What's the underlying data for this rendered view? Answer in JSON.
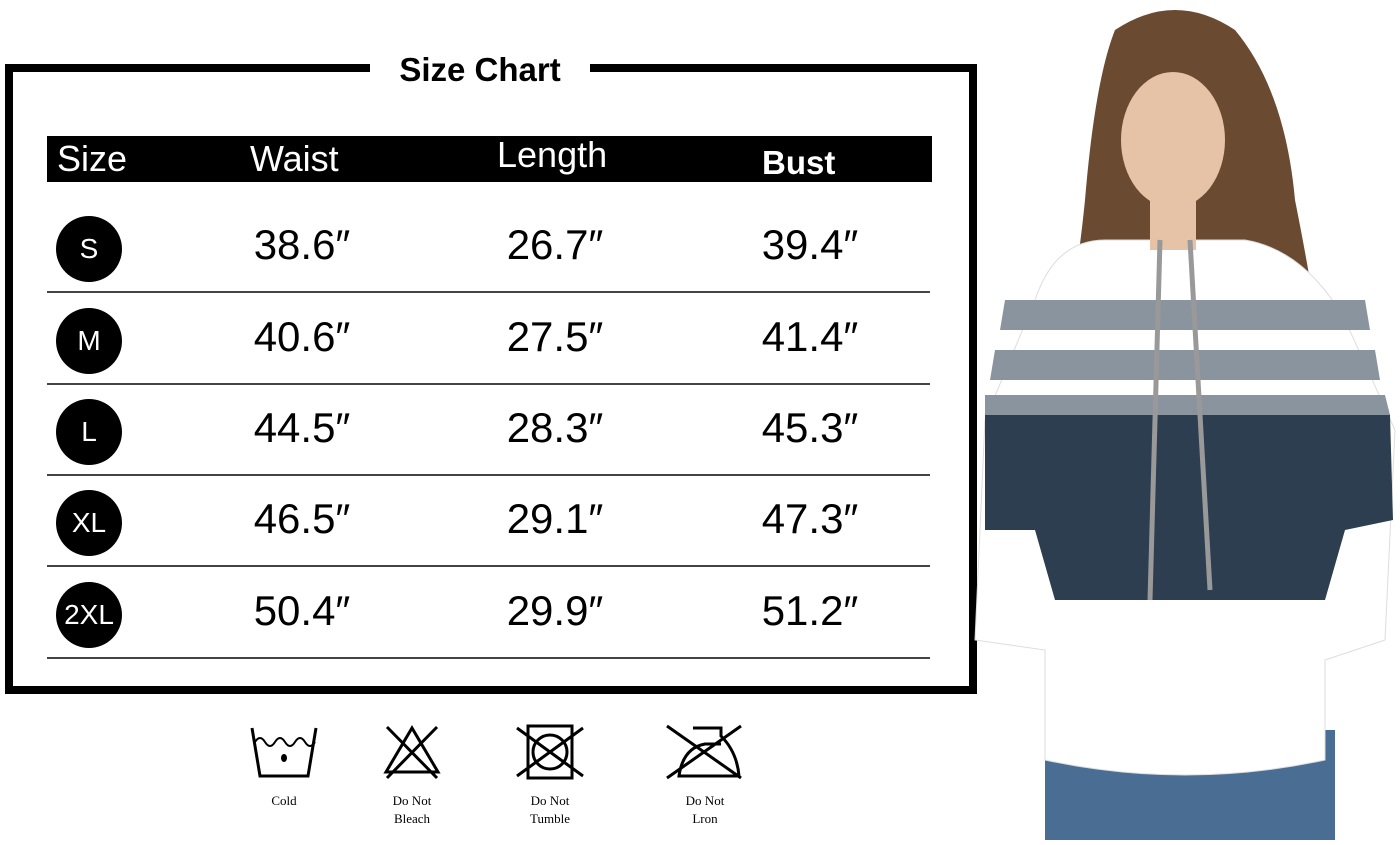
{
  "title": "Size Chart",
  "columns": [
    "Size",
    "Waist",
    "Length",
    "Bust"
  ],
  "rows": [
    {
      "size": "S",
      "waist": "38.6″",
      "length": "26.7″",
      "bust": "39.4″"
    },
    {
      "size": "M",
      "waist": "40.6″",
      "length": "27.5″",
      "bust": "41.4″"
    },
    {
      "size": "L",
      "waist": "44.5″",
      "length": "28.3″",
      "bust": "45.3″"
    },
    {
      "size": "XL",
      "waist": "46.5″",
      "length": "29.1″",
      "bust": "47.3″"
    },
    {
      "size": "2XL",
      "waist": "50.4″",
      "length": "29.9″",
      "bust": "51.2″"
    }
  ],
  "care": [
    {
      "icon": "wash-cold-icon",
      "line1": "Cold",
      "line2": ""
    },
    {
      "icon": "do-not-bleach-icon",
      "line1": "Do Not",
      "line2": "Bleach"
    },
    {
      "icon": "do-not-tumble-dry-icon",
      "line1": "Do Not",
      "line2": "Tumble"
    },
    {
      "icon": "do-not-iron-icon",
      "line1": "Do Not",
      "line2": "Lron"
    }
  ],
  "colors": {
    "navy": "#2c3e50",
    "stripe": "#8a949e",
    "hair": "#6b4a32"
  }
}
